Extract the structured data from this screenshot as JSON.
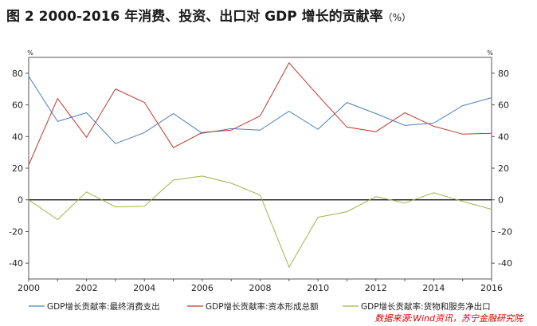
{
  "title": {
    "main": "图 2   2000-2016 年消费、投资、出口对 GDP 增长的贡献率",
    "unit": "（%）"
  },
  "source": "数据来源:Wind资讯，苏宁金融研究院",
  "chart_data": {
    "type": "line",
    "x": [
      2000,
      2001,
      2002,
      2003,
      2004,
      2005,
      2006,
      2007,
      2008,
      2009,
      2010,
      2011,
      2012,
      2013,
      2014,
      2015,
      2016
    ],
    "xticks": [
      2000,
      2002,
      2004,
      2006,
      2008,
      2010,
      2012,
      2014,
      2016
    ],
    "xlim": [
      2000,
      2016
    ],
    "ylim": [
      -50,
      90
    ],
    "yticks": [
      -40,
      -20,
      0,
      20,
      40,
      60,
      80
    ],
    "yunit": "%",
    "grid": false,
    "dual_y_axis": true,
    "zero_line": true,
    "legend_position": "bottom",
    "series": [
      {
        "name": "GDP增长贡献率:最终消费支出",
        "color": "#4a7fc1",
        "values": [
          78,
          49.5,
          55,
          35.5,
          42.5,
          54.5,
          42,
          45,
          44,
          56,
          44.5,
          61.5,
          54.5,
          47,
          48.5,
          59.5,
          64.5
        ]
      },
      {
        "name": "GDP增长贡献率:资本形成总额",
        "color": "#c0392b",
        "values": [
          22,
          64,
          39.5,
          70,
          61.5,
          33,
          42.5,
          44,
          53,
          86.5,
          66,
          46,
          43,
          55,
          46.5,
          41.5,
          42
        ]
      },
      {
        "name": "GDP增长贡献率:货物和服务净出口",
        "color": "#a3b34a",
        "values": [
          0,
          -12.5,
          5,
          -4.5,
          -4,
          12.5,
          15,
          10.5,
          3,
          -42.5,
          -11,
          -7.5,
          2,
          -2,
          4.5,
          -1,
          -6
        ]
      }
    ]
  }
}
